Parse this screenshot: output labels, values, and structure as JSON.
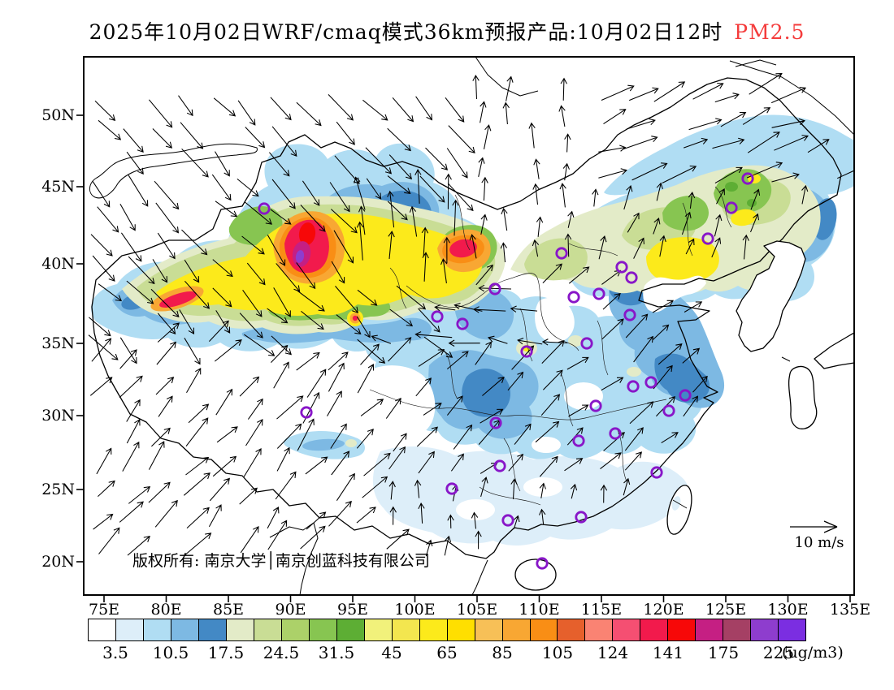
{
  "title": {
    "text": "2025年10月02日WRF/cmaq模式36km预报产品:10月02日12时",
    "pollutant": "PM2.5"
  },
  "axes": {
    "lat_labels": [
      "50N",
      "45N",
      "40N",
      "35N",
      "30N",
      "25N",
      "20N"
    ],
    "lon_labels": [
      "75E",
      "80E",
      "85E",
      "90E",
      "95E",
      "100E",
      "105E",
      "110E",
      "115E",
      "120E",
      "125E",
      "130E",
      "135E"
    ]
  },
  "map": {
    "copyright": "版权所有: 南京大学│南京创蓝科技有限公司",
    "wind_legend_label": "10 m/s"
  },
  "colorbar": {
    "unit_label": "(ug/m3)",
    "tick_labels": [
      "3.5",
      "10.5",
      "17.5",
      "24.5",
      "31.5",
      "45",
      "65",
      "85",
      "105",
      "124",
      "141",
      "175",
      "225"
    ],
    "cell_colors": [
      "#ffffff",
      "#ddeef9",
      "#b0ddf3",
      "#7db9e3",
      "#4389c5",
      "#e3ebc8",
      "#c9dd95",
      "#acd169",
      "#87c551",
      "#5dae34",
      "#f1f17b",
      "#f3e64f",
      "#fcea1b",
      "#ffdf00",
      "#f7c057",
      "#f8a733",
      "#f98e15",
      "#e6602c",
      "#fa8373",
      "#f54f72",
      "#f21a4c",
      "#f70808",
      "#c51f83",
      "#a54064",
      "#8e3dce",
      "#7b2ee1"
    ]
  },
  "accent_colors": {
    "pollutant_red": "#f43b3b",
    "station_marker_purple": "#8816c8"
  }
}
